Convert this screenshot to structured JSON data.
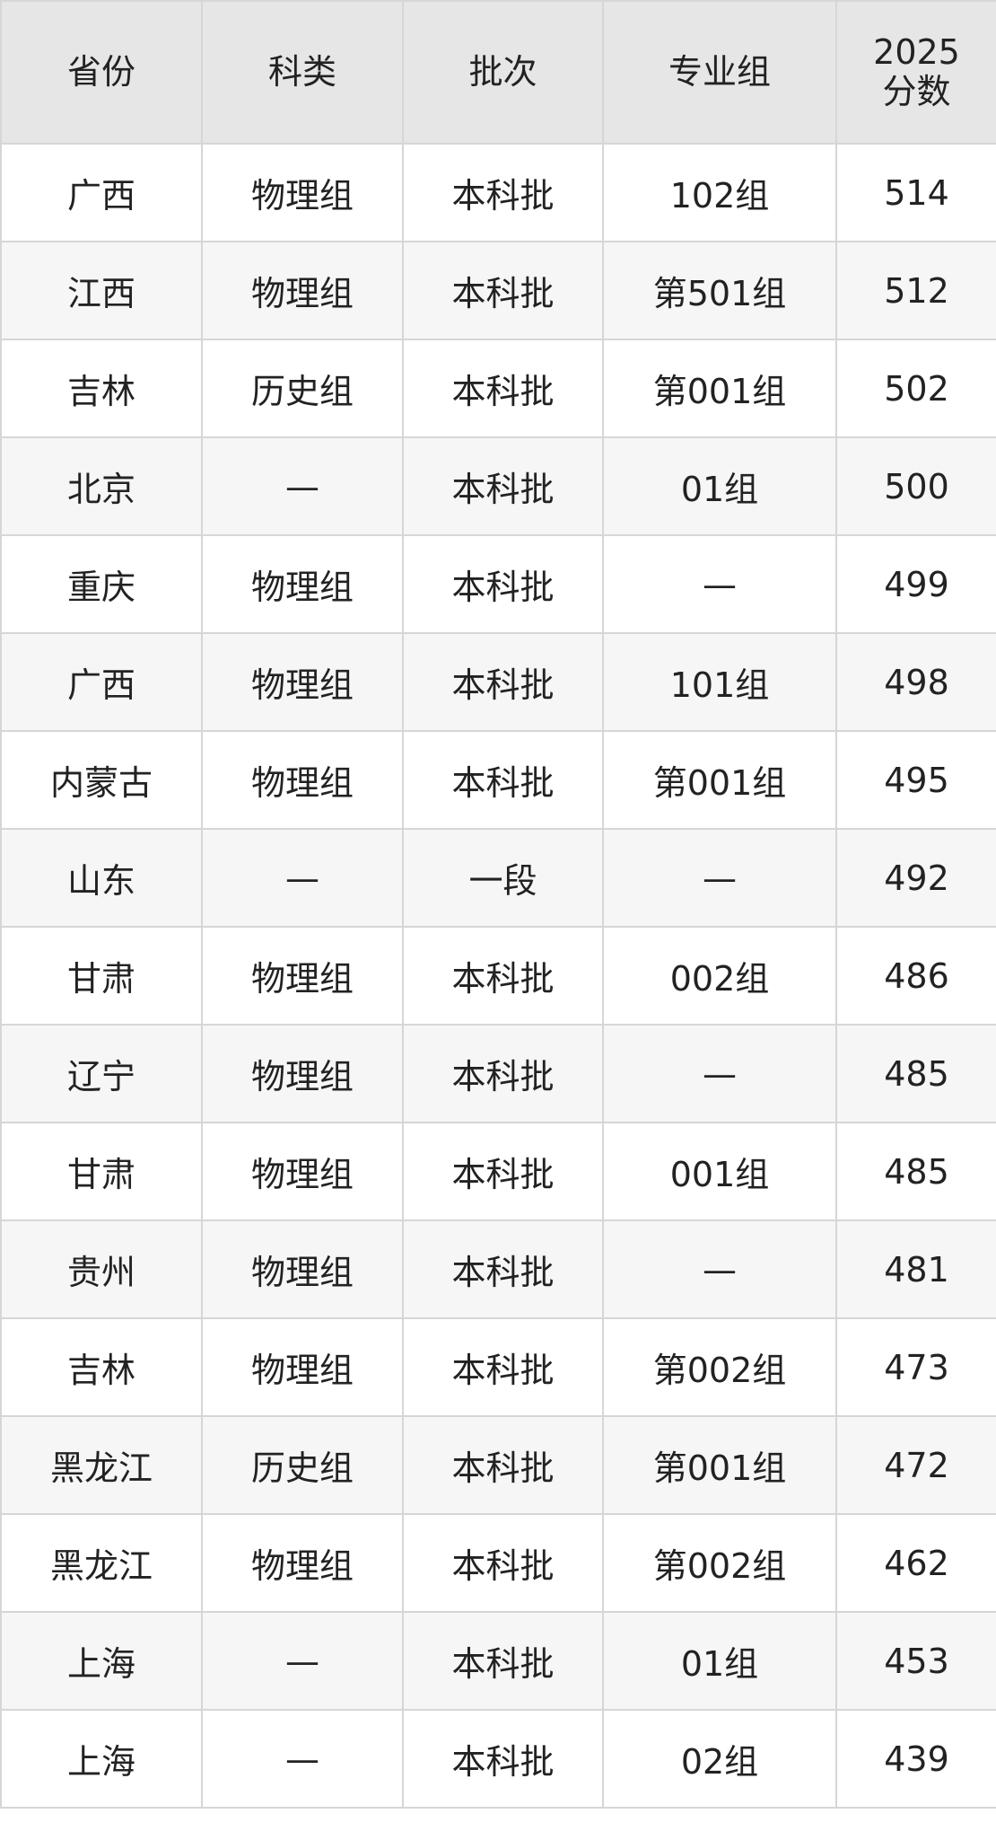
{
  "table": {
    "header": [
      "省份",
      "科类",
      "批次",
      "专业组",
      "2025\n分数"
    ],
    "rows": [
      [
        "广西",
        "物理组",
        "本科批",
        "102组",
        "514"
      ],
      [
        "江西",
        "物理组",
        "本科批",
        "第501组",
        "512"
      ],
      [
        "吉林",
        "历史组",
        "本科批",
        "第001组",
        "502"
      ],
      [
        "北京",
        "—",
        "本科批",
        "01组",
        "500"
      ],
      [
        "重庆",
        "物理组",
        "本科批",
        "—",
        "499"
      ],
      [
        "广西",
        "物理组",
        "本科批",
        "101组",
        "498"
      ],
      [
        "内蒙古",
        "物理组",
        "本科批",
        "第001组",
        "495"
      ],
      [
        "山东",
        "—",
        "一段",
        "—",
        "492"
      ],
      [
        "甘肃",
        "物理组",
        "本科批",
        "002组",
        "486"
      ],
      [
        "辽宁",
        "物理组",
        "本科批",
        "—",
        "485"
      ],
      [
        "甘肃",
        "物理组",
        "本科批",
        "001组",
        "485"
      ],
      [
        "贵州",
        "物理组",
        "本科批",
        "—",
        "481"
      ],
      [
        "吉林",
        "物理组",
        "本科批",
        "第002组",
        "473"
      ],
      [
        "黑龙江",
        "历史组",
        "本科批",
        "第001组",
        "472"
      ],
      [
        "黑龙江",
        "物理组",
        "本科批",
        "第002组",
        "462"
      ],
      [
        "上海",
        "—",
        "本科批",
        "01组",
        "453"
      ],
      [
        "上海",
        "—",
        "本科批",
        "02组",
        "439"
      ]
    ]
  }
}
